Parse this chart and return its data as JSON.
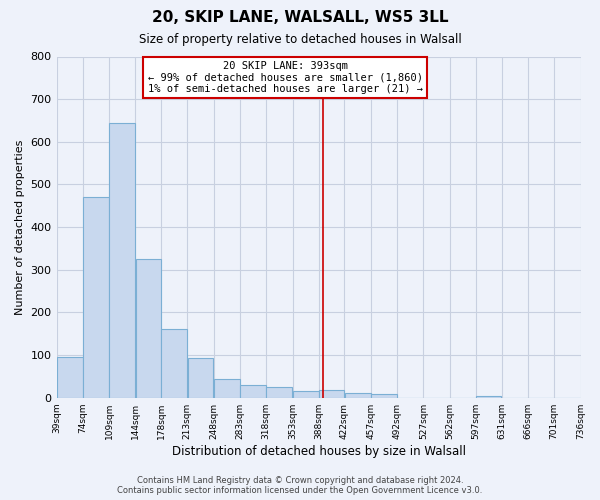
{
  "title": "20, SKIP LANE, WALSALL, WS5 3LL",
  "subtitle": "Size of property relative to detached houses in Walsall",
  "xlabel": "Distribution of detached houses by size in Walsall",
  "ylabel": "Number of detached properties",
  "bar_left_edges": [
    39,
    74,
    109,
    144,
    178,
    213,
    248,
    283,
    318,
    353,
    388,
    422,
    457,
    492,
    527,
    562,
    597,
    631,
    666,
    701
  ],
  "bar_widths": [
    35,
    35,
    35,
    34,
    35,
    35,
    35,
    35,
    35,
    35,
    34,
    35,
    35,
    35,
    35,
    35,
    34,
    35,
    35,
    35
  ],
  "bar_heights": [
    95,
    470,
    645,
    325,
    160,
    92,
    43,
    30,
    25,
    15,
    17,
    12,
    8,
    0,
    0,
    0,
    5,
    0,
    0,
    0
  ],
  "bar_color": "#c8d8ee",
  "bar_edgecolor": "#7bafd4",
  "vline_x": 393,
  "vline_color": "#cc0000",
  "ylim": [
    0,
    800
  ],
  "yticks": [
    0,
    100,
    200,
    300,
    400,
    500,
    600,
    700,
    800
  ],
  "tick_labels": [
    "39sqm",
    "74sqm",
    "109sqm",
    "144sqm",
    "178sqm",
    "213sqm",
    "248sqm",
    "283sqm",
    "318sqm",
    "353sqm",
    "388sqm",
    "422sqm",
    "457sqm",
    "492sqm",
    "527sqm",
    "562sqm",
    "597sqm",
    "631sqm",
    "666sqm",
    "701sqm",
    "736sqm"
  ],
  "annotation_title": "20 SKIP LANE: 393sqm",
  "annotation_line1": "← 99% of detached houses are smaller (1,860)",
  "annotation_line2": "1% of semi-detached houses are larger (21) →",
  "footer1": "Contains HM Land Registry data © Crown copyright and database right 2024.",
  "footer2": "Contains public sector information licensed under the Open Government Licence v3.0.",
  "bg_color": "#eef2fa",
  "grid_color": "#c8d0e0"
}
